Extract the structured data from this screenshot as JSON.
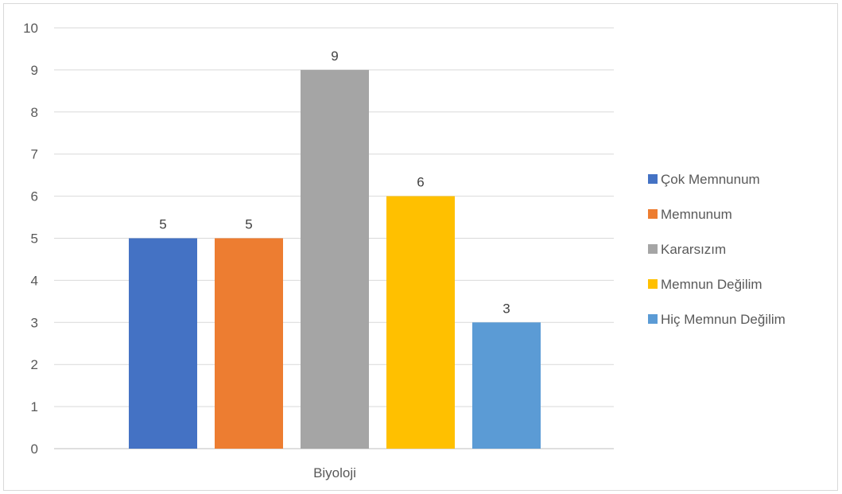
{
  "chart_data": {
    "type": "bar",
    "categories": [
      "Biyoloji"
    ],
    "series": [
      {
        "name": "Çok Memnunum",
        "values": [
          5
        ],
        "color": "#4472C4"
      },
      {
        "name": "Memnunum",
        "values": [
          5
        ],
        "color": "#ED7D31"
      },
      {
        "name": "Kararsızım",
        "values": [
          9
        ],
        "color": "#A5A5A5"
      },
      {
        "name": "Memnun Değilim",
        "values": [
          6
        ],
        "color": "#FFC000"
      },
      {
        "name": "Hiç Memnun Değilim",
        "values": [
          3
        ],
        "color": "#5B9BD5"
      }
    ],
    "title": "",
    "xlabel": "",
    "ylabel": "",
    "ylim": [
      0,
      10
    ],
    "yticks": [
      0,
      1,
      2,
      3,
      4,
      5,
      6,
      7,
      8,
      9,
      10
    ],
    "grid": true,
    "legend_position": "right",
    "data_labels": true
  }
}
